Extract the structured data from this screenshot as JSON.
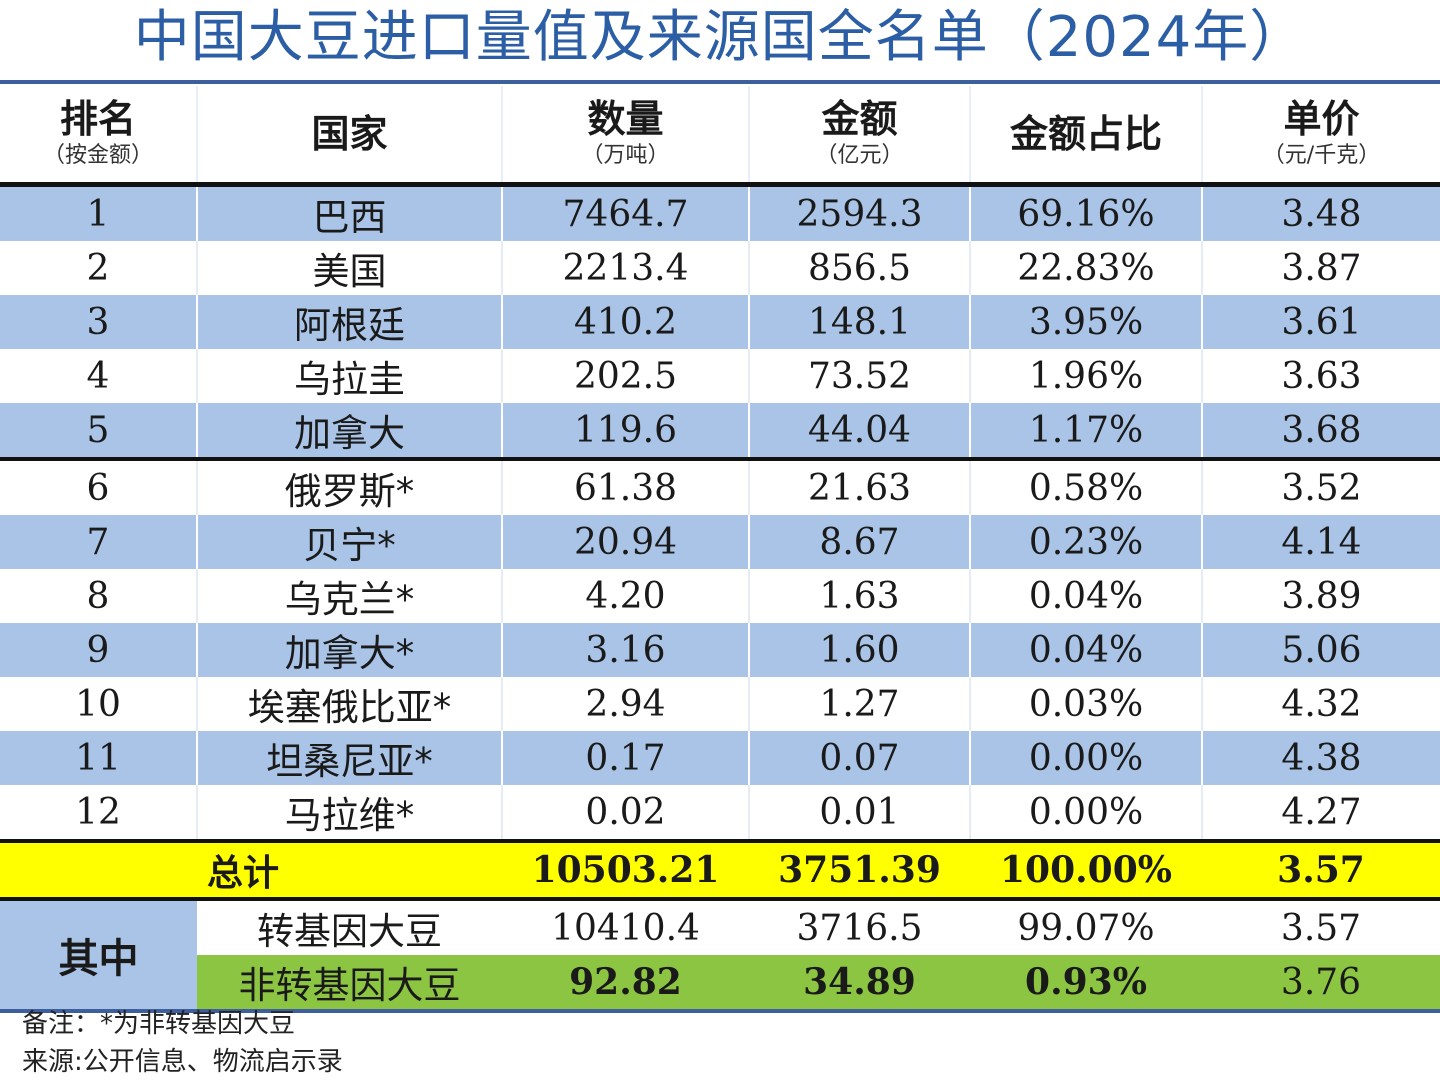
{
  "title": "中国大豆进口量值及来源国全名单（2024年）",
  "columns": [
    {
      "label": "排名",
      "sub": "（按金额）"
    },
    {
      "label": "国家",
      "sub": ""
    },
    {
      "label": "数量",
      "sub": "（万吨）"
    },
    {
      "label": "金额",
      "sub": "（亿元）"
    },
    {
      "label": "金额占比",
      "sub": ""
    },
    {
      "label": "单价",
      "sub": "（元/千克）"
    }
  ],
  "rows": [
    {
      "rank": "1",
      "country": "巴西",
      "qty": "7464.7",
      "amount": "2594.3",
      "share": "69.16%",
      "price": "3.48"
    },
    {
      "rank": "2",
      "country": "美国",
      "qty": "2213.4",
      "amount": "856.5",
      "share": "22.83%",
      "price": "3.87"
    },
    {
      "rank": "3",
      "country": "阿根廷",
      "qty": "410.2",
      "amount": "148.1",
      "share": "3.95%",
      "price": "3.61"
    },
    {
      "rank": "4",
      "country": "乌拉圭",
      "qty": "202.5",
      "amount": "73.52",
      "share": "1.96%",
      "price": "3.63"
    },
    {
      "rank": "5",
      "country": "加拿大",
      "qty": "119.6",
      "amount": "44.04",
      "share": "1.17%",
      "price": "3.68"
    },
    {
      "rank": "6",
      "country": "俄罗斯*",
      "qty": "61.38",
      "amount": "21.63",
      "share": "0.58%",
      "price": "3.52"
    },
    {
      "rank": "7",
      "country": "贝宁*",
      "qty": "20.94",
      "amount": "8.67",
      "share": "0.23%",
      "price": "4.14"
    },
    {
      "rank": "8",
      "country": "乌克兰*",
      "qty": "4.20",
      "amount": "1.63",
      "share": "0.04%",
      "price": "3.89"
    },
    {
      "rank": "9",
      "country": "加拿大*",
      "qty": "3.16",
      "amount": "1.60",
      "share": "0.04%",
      "price": "5.06"
    },
    {
      "rank": "10",
      "country": "埃塞俄比亚*",
      "qty": "2.94",
      "amount": "1.27",
      "share": "0.03%",
      "price": "4.32"
    },
    {
      "rank": "11",
      "country": "坦桑尼亚*",
      "qty": "0.17",
      "amount": "0.07",
      "share": "0.00%",
      "price": "4.38"
    },
    {
      "rank": "12",
      "country": "马拉维*",
      "qty": "0.02",
      "amount": "0.01",
      "share": "0.00%",
      "price": "4.27"
    }
  ],
  "total": {
    "label": "总计",
    "qty": "10503.21",
    "amount": "3751.39",
    "share": "100.00%",
    "price": "3.57"
  },
  "breakdown": {
    "label": "其中",
    "gm": {
      "label": "转基因大豆",
      "qty": "10410.4",
      "amount": "3716.5",
      "share": "99.07%",
      "price": "3.57"
    },
    "non_gm": {
      "label": "非转基因大豆",
      "qty": "92.82",
      "amount": "34.89",
      "share": "0.93%",
      "price": "3.76"
    }
  },
  "notes": {
    "remark": "备注：*为非转基因大豆",
    "source": "来源:公开信息、物流启示录"
  },
  "colors": {
    "title": "#2b5ea5",
    "row_blue": "#a9c4e6",
    "total_yellow": "#ffff00",
    "nongm_green": "#8cc542"
  }
}
